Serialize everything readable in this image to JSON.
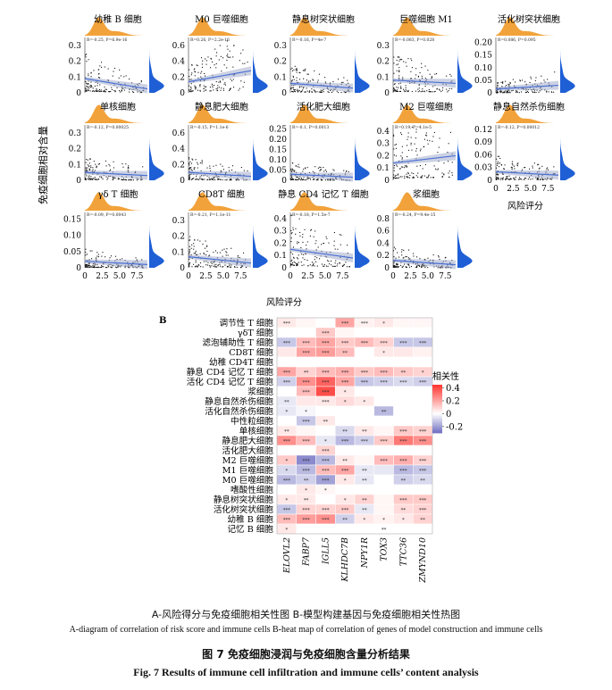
{
  "figure": {
    "caption_sub_cn": "A-风险得分与免疫细胞相关性图   B-模型构建基因与免疫细胞相关性热图",
    "caption_sub_en": "A-diagram of correlation of risk score and immune cells   B-heat map of correlation of genes of model construction and immune cells",
    "caption_title_cn": "图 7  免疫细胞浸润与免疫细胞含量分析结果",
    "caption_title_en": "Fig. 7  Results of immune cell infiltration and immune cells’ content analysis"
  },
  "chart_data": [
    {
      "type": "scatter",
      "panel": "A",
      "xlabel": "风险评分",
      "ylabel": "免疫细胞相对含量",
      "x_ticks": [
        "0",
        "2.5",
        "5.0",
        "7.5"
      ],
      "xlim": [
        0,
        9
      ],
      "point_color": "#111111",
      "fit_color": "#4a6fd4",
      "top_density_color": "#f2a23a",
      "right_density_color": "#1f5fd6",
      "panels": [
        {
          "title": "幼稚 B 细胞",
          "stat": "R=-0.25, P=6.9e-16",
          "y_ticks": [
            "0",
            "0.1",
            "0.2",
            "0.3"
          ],
          "ylim": [
            0,
            0.35
          ],
          "fit": [
            0.09,
            0.025
          ],
          "slope_sign": -1
        },
        {
          "title": "M0 巨噬细胞",
          "stat": "R=0.26, P=2.2e-16",
          "y_ticks": [
            "0",
            "0.2",
            "0.4",
            "0.6"
          ],
          "ylim": [
            0,
            0.7
          ],
          "fit": [
            0.14,
            0.28
          ],
          "slope_sign": 1
        },
        {
          "title": "静息树突状细胞",
          "stat": "R=-0.16, P=4e-7",
          "y_ticks": [
            "0",
            "0.1",
            "0.2",
            "0.3"
          ],
          "ylim": [
            0,
            0.35
          ],
          "fit": [
            0.06,
            0.03
          ],
          "slope_sign": -1
        },
        {
          "title": "巨噬细胞 M1",
          "stat": "R=-0.083, P=0.028",
          "y_ticks": [
            "0",
            "0.1",
            "0.2",
            "0.3"
          ],
          "ylim": [
            0,
            0.35
          ],
          "fit": [
            0.08,
            0.06
          ],
          "slope_sign": -1
        },
        {
          "title": "活化树突状细胞",
          "stat": "R=0.086, P=0.095",
          "y_ticks": [
            "0",
            "0.05",
            "0.10",
            "0.15",
            "0.20"
          ],
          "ylim": [
            0,
            0.22
          ],
          "fit": [
            0.015,
            0.03
          ],
          "slope_sign": 1
        },
        {
          "title": "单核细胞",
          "stat": "R=-0.12, P=0.00025",
          "y_ticks": [
            "0",
            "0.1",
            "0.2",
            "0.3"
          ],
          "ylim": [
            0,
            0.35
          ],
          "fit": [
            0.05,
            0.03
          ],
          "slope_sign": -1
        },
        {
          "title": "静息肥大细胞",
          "stat": "R=-0.15, P=1.1e-6",
          "y_ticks": [
            "0",
            "0.2",
            "0.4",
            "0.6"
          ],
          "ylim": [
            0,
            0.7
          ],
          "fit": [
            0.1,
            0.05
          ],
          "slope_sign": -1
        },
        {
          "title": "活化肥大细胞",
          "stat": "R=-0.1, P=0.0013",
          "y_ticks": [
            "0",
            "0.05",
            "0.10",
            "0.15",
            "0.20",
            "0.25"
          ],
          "ylim": [
            0,
            0.27
          ],
          "fit": [
            0.03,
            0.015
          ],
          "slope_sign": -1
        },
        {
          "title": "M2 巨噬细胞",
          "stat": "R=0.19, P=4.1e-5",
          "y_ticks": [
            "0",
            "0.1",
            "0.2",
            "0.3",
            "0.4"
          ],
          "ylim": [
            0,
            0.45
          ],
          "fit": [
            0.14,
            0.2
          ],
          "slope_sign": 1
        },
        {
          "title": "静息自然杀伤细胞",
          "stat": "R=-0.12, P=0.00012",
          "y_ticks": [
            "0",
            "0.03",
            "0.06",
            "0.09",
            "0.12"
          ],
          "ylim": [
            0,
            0.13
          ],
          "fit": [
            0.02,
            0.012
          ],
          "slope_sign": -1
        },
        {
          "title": "γδ T 细胞",
          "stat": "R=-0.09, P=0.0043",
          "y_ticks": [
            "0",
            "0.05",
            "0.10",
            "0.15"
          ],
          "ylim": [
            0,
            0.17
          ],
          "fit": [
            0.02,
            0.01
          ],
          "slope_sign": -1
        },
        {
          "title": "CD8T 细胞",
          "stat": "R=-0.21, P=1.1e-11",
          "y_ticks": [
            "0",
            "0.1",
            "0.2",
            "0.3"
          ],
          "ylim": [
            0,
            0.35
          ],
          "fit": [
            0.07,
            0.03
          ],
          "slope_sign": -1
        },
        {
          "title": "静息 CD4 记忆 T 细胞",
          "stat": "R=-0.18, P=1.5e-7",
          "y_ticks": [
            "0",
            "0.1",
            "0.2",
            "0.3",
            "0.4"
          ],
          "ylim": [
            0,
            0.45
          ],
          "fit": [
            0.15,
            0.08
          ],
          "slope_sign": -1
        },
        {
          "title": "浆细胞",
          "stat": "R=-0.24, P=9.4e-15",
          "y_ticks": [
            "0",
            "0.2",
            "0.4",
            "0.6",
            "0.8"
          ],
          "ylim": [
            0,
            0.9
          ],
          "fit": [
            0.12,
            0.05
          ],
          "slope_sign": -1
        }
      ]
    },
    {
      "type": "heatmap",
      "panel": "B",
      "legend_title": "相关性",
      "legend_ticks": [
        "0.4",
        "0.2",
        "0",
        "-0.2"
      ],
      "value_range": [
        -0.3,
        0.45
      ],
      "rows": [
        "调节性 T 细胞",
        "γδT 细胞",
        "滤泡辅助性 T 细胞",
        "CD8T 细胞",
        "幼稚 CD4T 细胞",
        "静息 CD4 记忆 T 细胞",
        "活化 CD4 记忆 T 细胞",
        "浆细胞",
        "静息自然杀伤细胞",
        "活化自然杀伤细胞",
        "中性粒细胞",
        "单核细胞",
        "静息肥大细胞",
        "活化肥大细胞",
        "M2 巨噬细胞",
        "M1 巨噬细胞",
        "M0 巨噬细胞",
        "嗜酸性细胞",
        "静息树突状细胞",
        "活化树突状细胞",
        "幼稚 B 细胞",
        "记忆 B 细胞"
      ],
      "columns": [
        "ELOVL2",
        "FABP7",
        "IGLL5",
        "KLHDC7B",
        "NPY1R",
        "TOX3",
        "TTC36",
        "ZMYND10"
      ],
      "values": [
        [
          0.05,
          0.02,
          0.0,
          0.2,
          0.03,
          0.05,
          0.02,
          0.02
        ],
        [
          0.0,
          0.0,
          0.12,
          0.02,
          0.0,
          0.0,
          0.0,
          0.0
        ],
        [
          -0.12,
          0.15,
          0.2,
          0.12,
          0.15,
          0.1,
          -0.12,
          -0.12
        ],
        [
          0.05,
          0.2,
          0.22,
          0.15,
          0.0,
          0.05,
          0.05,
          0.03
        ],
        [
          0.0,
          0.0,
          0.0,
          0.0,
          0.0,
          0.0,
          0.0,
          0.0
        ],
        [
          0.2,
          0.1,
          0.15,
          0.18,
          0.12,
          0.15,
          0.12,
          0.1
        ],
        [
          -0.1,
          0.25,
          0.35,
          0.2,
          -0.12,
          -0.1,
          -0.08,
          -0.1
        ],
        [
          0.0,
          0.15,
          0.4,
          0.05,
          0.0,
          0.0,
          0.0,
          0.0
        ],
        [
          -0.05,
          0.05,
          0.05,
          0.08,
          0.05,
          0.0,
          0.0,
          0.0
        ],
        [
          -0.05,
          -0.02,
          0.0,
          0.0,
          0.0,
          -0.15,
          0.0,
          0.0
        ],
        [
          0.0,
          -0.12,
          0.05,
          0.0,
          0.0,
          0.0,
          0.0,
          0.0
        ],
        [
          0.05,
          0.02,
          0.0,
          -0.08,
          0.05,
          0.02,
          0.12,
          0.1
        ],
        [
          0.25,
          0.15,
          -0.05,
          -0.15,
          -0.1,
          0.12,
          0.3,
          0.25
        ],
        [
          0.0,
          0.0,
          0.1,
          0.0,
          0.0,
          0.0,
          0.0,
          0.0
        ],
        [
          0.12,
          -0.25,
          -0.15,
          0.05,
          0.02,
          0.15,
          0.18,
          0.1
        ],
        [
          -0.08,
          -0.15,
          0.15,
          0.2,
          -0.05,
          -0.05,
          -0.15,
          -0.12
        ],
        [
          -0.15,
          -0.1,
          -0.2,
          0.05,
          -0.05,
          0.0,
          -0.1,
          -0.08
        ],
        [
          0.0,
          0.05,
          0.02,
          0.0,
          0.0,
          0.0,
          0.0,
          0.0
        ],
        [
          0.05,
          0.05,
          0.0,
          0.05,
          0.1,
          0.02,
          0.12,
          0.12
        ],
        [
          -0.12,
          0.1,
          0.1,
          0.12,
          -0.05,
          0.02,
          0.08,
          0.1
        ],
        [
          0.15,
          0.22,
          0.25,
          -0.1,
          0.05,
          0.03,
          0.05,
          0.1
        ],
        [
          0.05,
          0.0,
          0.0,
          0.0,
          0.0,
          0.0,
          0.0,
          0.0
        ]
      ],
      "significance": [
        [
          "***",
          "",
          "",
          "***",
          "***",
          "*",
          "",
          ""
        ],
        [
          "",
          "",
          "***",
          "",
          "",
          "",
          "",
          ""
        ],
        [
          "***",
          "***",
          "***",
          "***",
          "***",
          "***",
          "***",
          "***"
        ],
        [
          "",
          "***",
          "***",
          "**",
          "",
          "*",
          "",
          ""
        ],
        [
          "",
          "",
          "",
          "",
          "",
          "",
          "",
          ""
        ],
        [
          "***",
          "**",
          "***",
          "***",
          "***",
          "***",
          "**",
          "*"
        ],
        [
          "***",
          "***",
          "***",
          "***",
          "***",
          "***",
          "***",
          "***"
        ],
        [
          "",
          "***",
          "***",
          "*",
          "",
          "",
          "",
          ""
        ],
        [
          "**",
          "",
          "***",
          "*",
          "*",
          "",
          "",
          ""
        ],
        [
          "*",
          "*",
          "",
          "",
          "",
          "**",
          "",
          ""
        ],
        [
          "",
          "***",
          "**",
          "",
          "",
          "",
          "",
          ""
        ],
        [
          "**",
          "",
          "",
          "**",
          "**",
          "",
          "***",
          "***"
        ],
        [
          "***",
          "***",
          "*",
          "***",
          "***",
          "***",
          "***",
          "***"
        ],
        [
          "",
          "",
          "***",
          "",
          "",
          "",
          "",
          ""
        ],
        [
          "*",
          "***",
          "***",
          "**",
          "",
          "***",
          "***",
          "***"
        ],
        [
          "*",
          "***",
          "***",
          "***",
          "**",
          "",
          "***",
          "***"
        ],
        [
          "***",
          "**",
          "***",
          "*",
          "**",
          "",
          "**",
          "**"
        ],
        [
          "",
          "*",
          "*",
          "",
          "",
          "",
          "",
          ""
        ],
        [
          "*",
          "**",
          "",
          "*",
          "**",
          "",
          "***",
          "***"
        ],
        [
          "***",
          "***",
          "***",
          "***",
          "**",
          "",
          "**",
          "***"
        ],
        [
          "***",
          "***",
          "***",
          "**",
          "*",
          "*",
          "*",
          "**"
        ],
        [
          "*",
          "",
          "",
          "",
          "",
          "**",
          "",
          ""
        ]
      ]
    }
  ]
}
